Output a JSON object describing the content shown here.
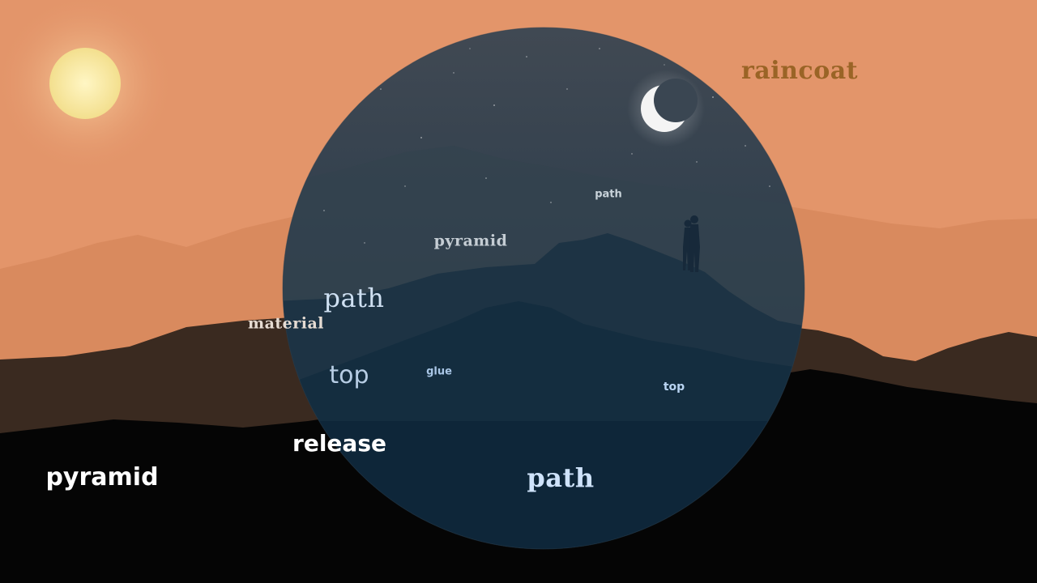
{
  "scene": {
    "colors": {
      "sky_day": "#e3956a",
      "sun": "#f6e8a0",
      "night_circle": "#1b3a4e",
      "moon": "#f4f4f4",
      "far_mountains": "#d98a5e",
      "mid_mountains": "#3a2a20",
      "foreground": "#050505"
    },
    "icons": [
      "sun-icon",
      "moon-icon",
      "couple-silhouette"
    ]
  },
  "words": [
    {
      "id": "raincoat",
      "text": "raincoat",
      "color": "#9a6426"
    },
    {
      "id": "path-small",
      "text": "path",
      "color": "#c9d3da"
    },
    {
      "id": "pyramid-mid",
      "text": "pyramid",
      "color": "#c5cdd4"
    },
    {
      "id": "path-medium",
      "text": "path",
      "color": "#cfe0f2"
    },
    {
      "id": "material",
      "text": "material",
      "color": "#e6dcd3"
    },
    {
      "id": "top-large",
      "text": "top",
      "color": "#b7cde4"
    },
    {
      "id": "glue",
      "text": "glue",
      "color": "#a9c6e6"
    },
    {
      "id": "top-small",
      "text": "top",
      "color": "#b9d4f2"
    },
    {
      "id": "release",
      "text": "release",
      "color": "#ffffff"
    },
    {
      "id": "pyramid-large",
      "text": "pyramid",
      "color": "#ffffff"
    },
    {
      "id": "path-large",
      "text": "path",
      "color": "#cfe3fb"
    }
  ]
}
